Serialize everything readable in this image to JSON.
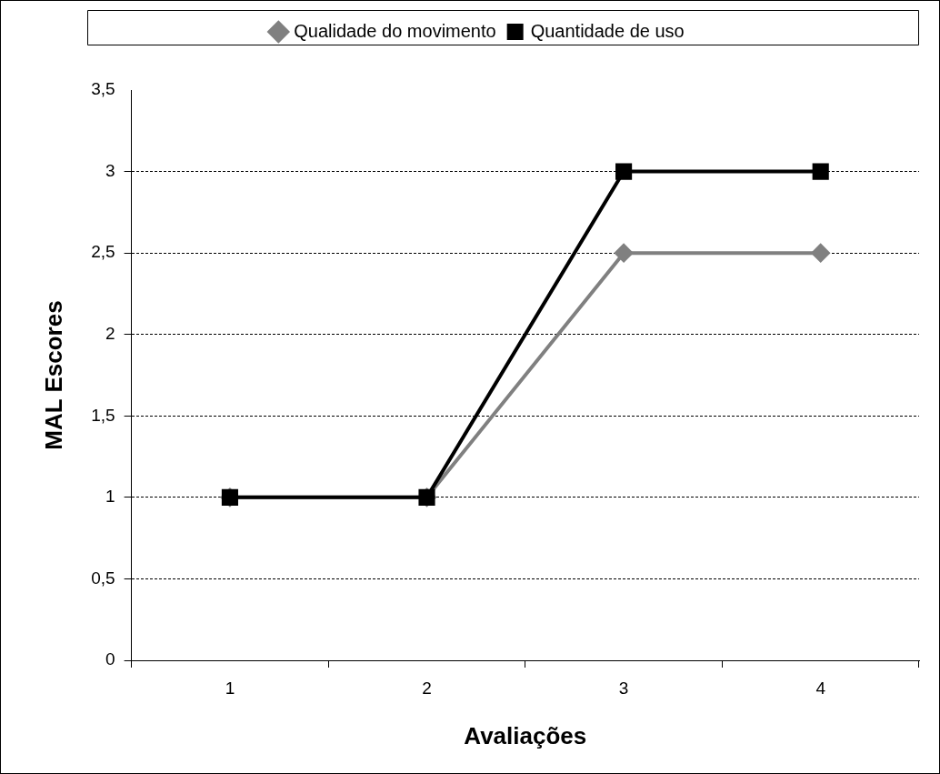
{
  "chart_data": {
    "type": "line",
    "xlabel": "Avaliações",
    "ylabel": "MAL Escores",
    "categories": [
      "1",
      "2",
      "3",
      "4"
    ],
    "series": [
      {
        "name": "Qualidade do movimento",
        "color": "#808080",
        "marker": "diamond",
        "values": [
          1,
          1,
          2.5,
          2.5
        ]
      },
      {
        "name": "Quantidade de uso",
        "color": "#000000",
        "marker": "square",
        "values": [
          1,
          1,
          3,
          3
        ]
      }
    ],
    "ylim": [
      0,
      3.5
    ],
    "yticks": [
      {
        "value": 0,
        "label": "0"
      },
      {
        "value": 0.5,
        "label": "0,5"
      },
      {
        "value": 1,
        "label": "1"
      },
      {
        "value": 1.5,
        "label": "1,5"
      },
      {
        "value": 2,
        "label": "2"
      },
      {
        "value": 2.5,
        "label": "2,5"
      },
      {
        "value": 3,
        "label": "3"
      },
      {
        "value": 3.5,
        "label": "3,5"
      }
    ],
    "grid": "y",
    "legend": "top",
    "line_style": "solid"
  }
}
